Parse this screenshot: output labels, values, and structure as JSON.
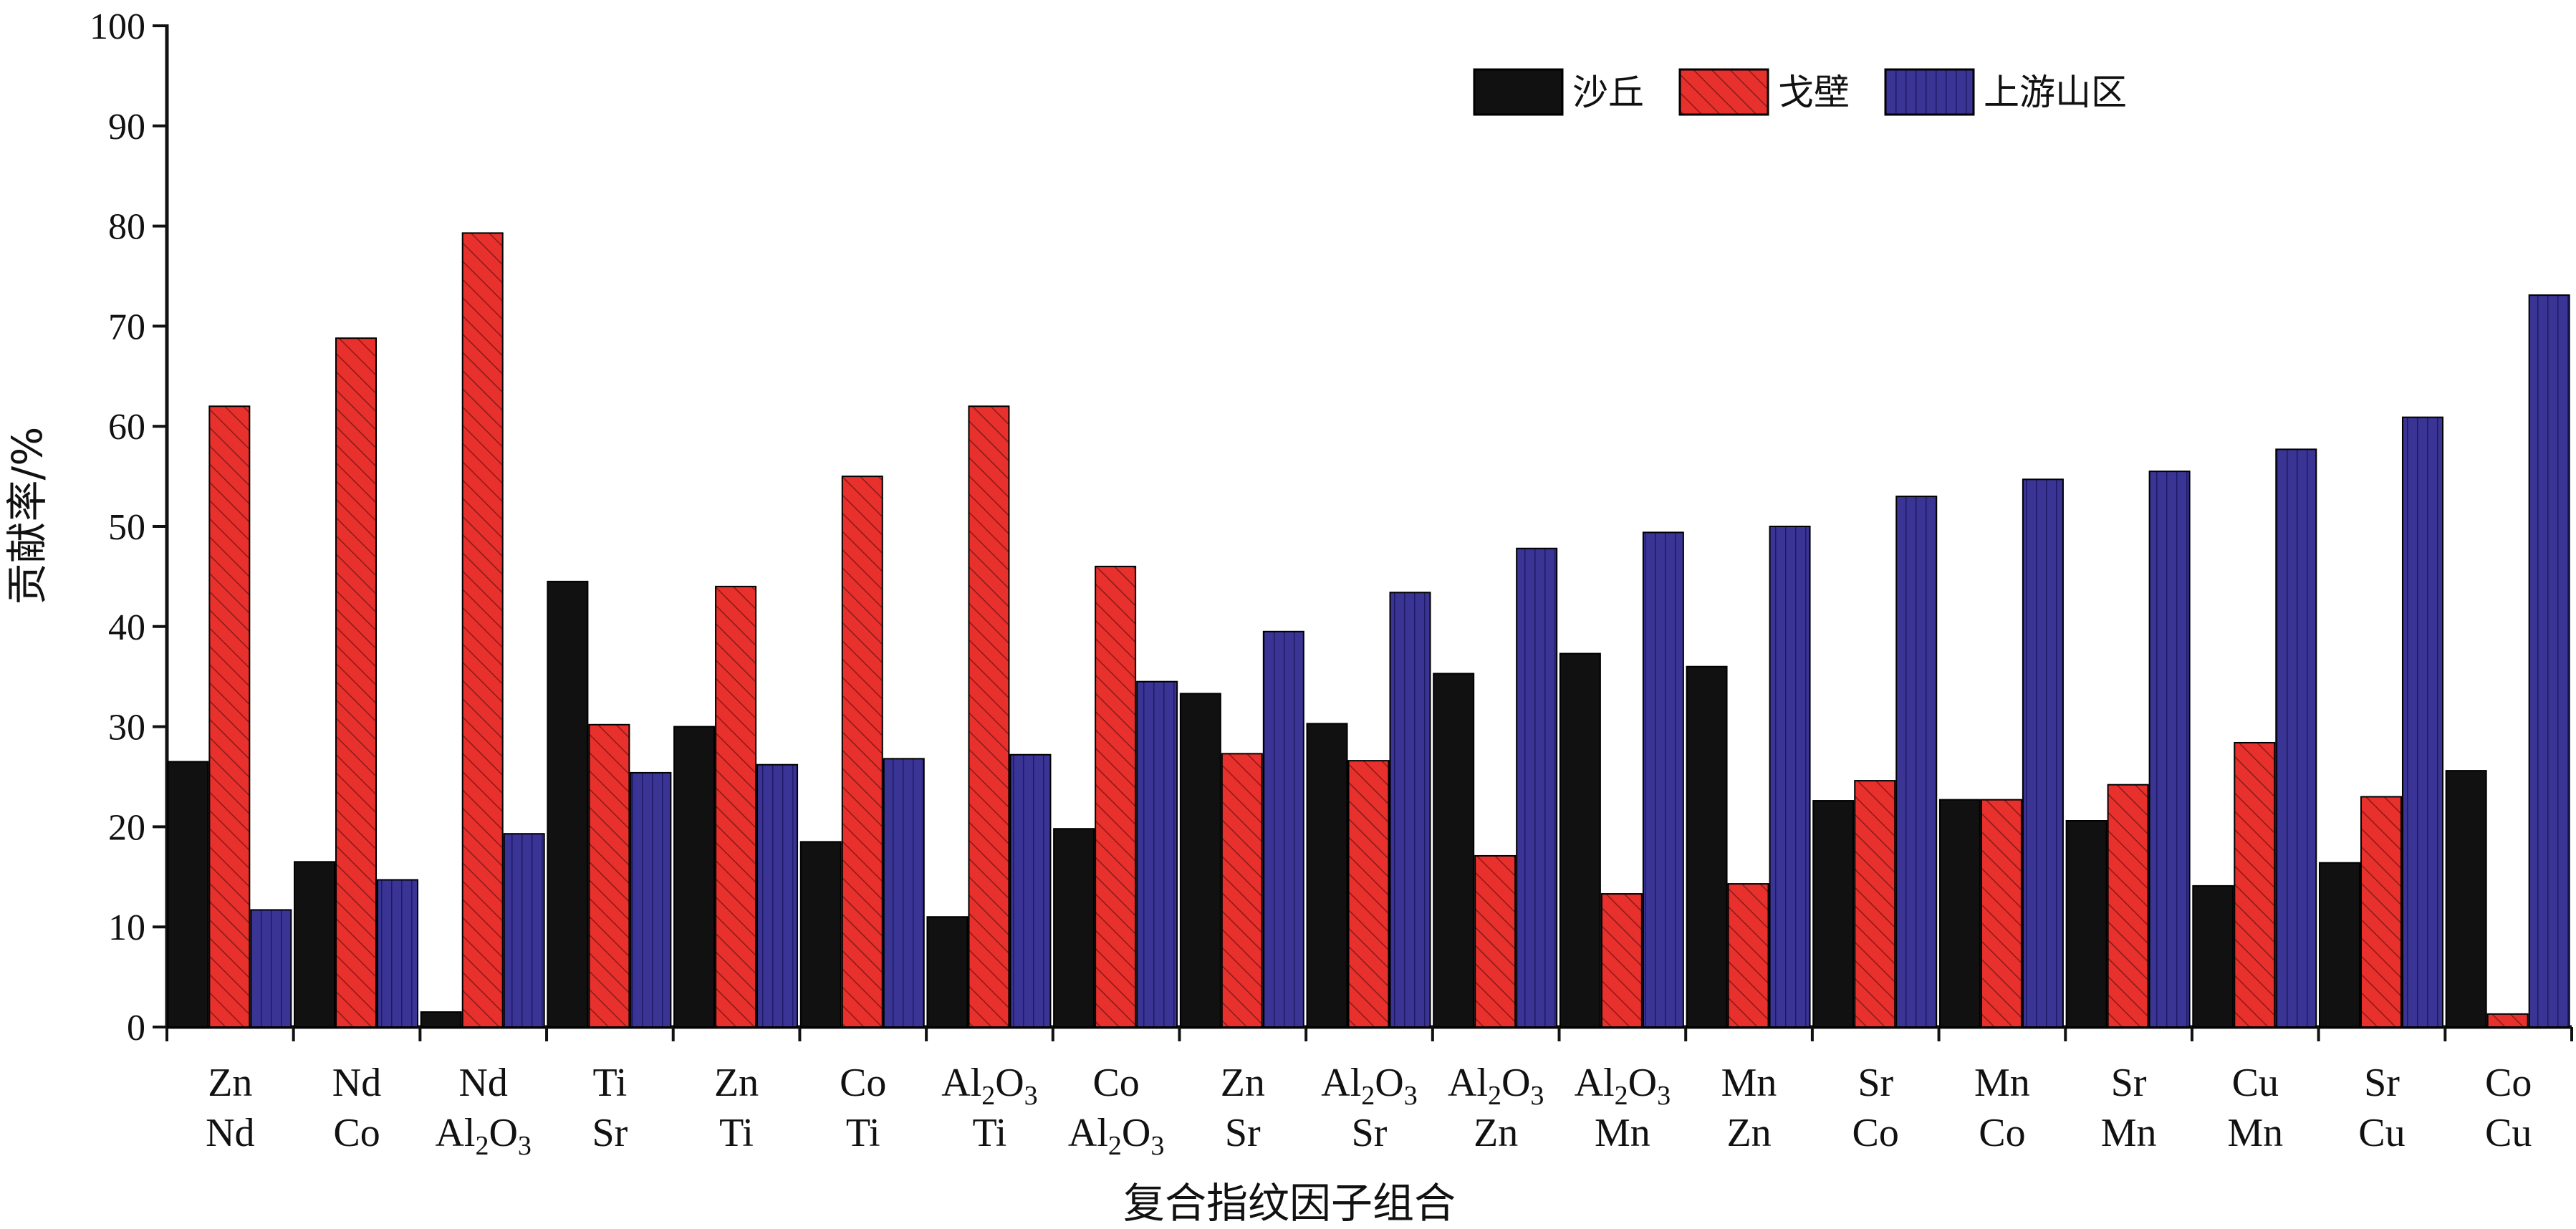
{
  "colors": {
    "sand_dune": "#111111",
    "gobi": "#e8302c",
    "upstream": "#3a3494",
    "axis": "#111111"
  },
  "chart_data": {
    "type": "bar",
    "xlabel": "复合指纹因子组合",
    "ylabel": "贡献率/%",
    "ylim": [
      0,
      100
    ],
    "yticks": [
      0,
      10,
      20,
      30,
      40,
      50,
      60,
      70,
      80,
      90,
      100
    ],
    "legend_position": "top-right",
    "categories": [
      [
        "Zn",
        "Nd"
      ],
      [
        "Nd",
        "Co"
      ],
      [
        "Nd",
        "Al2O3"
      ],
      [
        "Ti",
        "Sr"
      ],
      [
        "Zn",
        "Ti"
      ],
      [
        "Co",
        "Ti"
      ],
      [
        "Al2O3",
        "Ti"
      ],
      [
        "Co",
        "Al2O3"
      ],
      [
        "Zn",
        "Sr"
      ],
      [
        "Al2O3",
        "Sr"
      ],
      [
        "Al2O3",
        "Zn"
      ],
      [
        "Al2O3",
        "Mn"
      ],
      [
        "Mn",
        "Zn"
      ],
      [
        "Sr",
        "Co"
      ],
      [
        "Mn",
        "Co"
      ],
      [
        "Sr",
        "Mn"
      ],
      [
        "Cu",
        "Mn"
      ],
      [
        "Sr",
        "Cu"
      ],
      [
        "Co",
        "Cu"
      ]
    ],
    "series": [
      {
        "name": "沙丘",
        "color_key": "sand_dune",
        "values": [
          26.5,
          16.5,
          1.5,
          44.5,
          30,
          18.5,
          11,
          19.8,
          33.3,
          30.3,
          35.3,
          37.3,
          36,
          22.6,
          22.7,
          20.6,
          14.1,
          16.4,
          25.6
        ]
      },
      {
        "name": "戈壁",
        "color_key": "gobi",
        "values": [
          62,
          68.8,
          79.3,
          30.2,
          44,
          55,
          62,
          46,
          27.3,
          26.6,
          17.1,
          13.3,
          14.3,
          24.6,
          22.7,
          24.2,
          28.4,
          23,
          1.3
        ]
      },
      {
        "name": "上游山区",
        "color_key": "upstream",
        "values": [
          11.7,
          14.7,
          19.3,
          25.4,
          26.2,
          26.8,
          27.2,
          34.5,
          39.5,
          43.4,
          47.8,
          49.4,
          50,
          53,
          54.7,
          55.5,
          57.7,
          60.9,
          73.1
        ]
      }
    ]
  }
}
